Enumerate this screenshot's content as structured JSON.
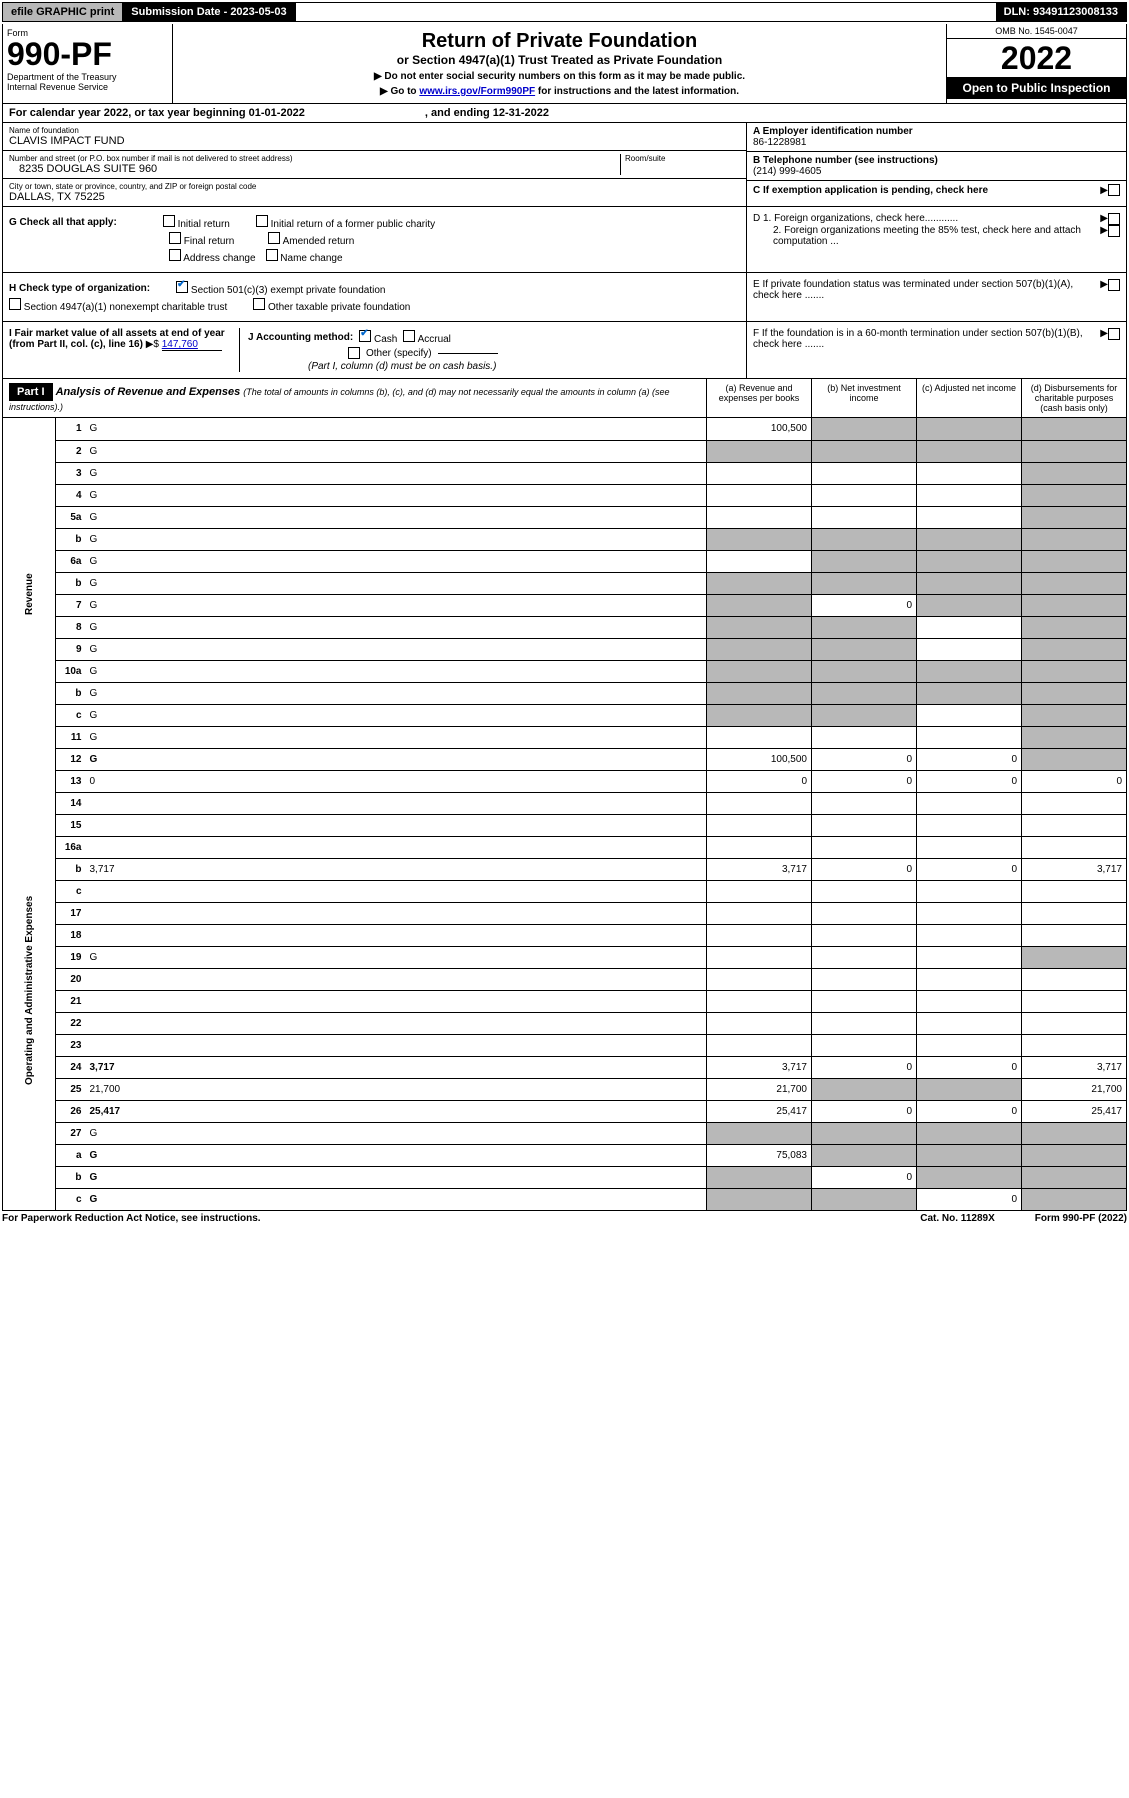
{
  "topbar": {
    "efile": "efile GRAPHIC print",
    "subdate_label": "Submission Date - 2023-05-03",
    "dln": "DLN: 93491123008133"
  },
  "header": {
    "form": "Form",
    "formno": "990-PF",
    "dept": "Department of the Treasury\nInternal Revenue Service",
    "title": "Return of Private Foundation",
    "subtitle": "or Section 4947(a)(1) Trust Treated as Private Foundation",
    "note1": "▶ Do not enter social security numbers on this form as it may be made public.",
    "note2_a": "▶ Go to ",
    "note2_link": "www.irs.gov/Form990PF",
    "note2_b": " for instructions and the latest information.",
    "omb": "OMB No. 1545-0047",
    "year": "2022",
    "inspect": "Open to Public Inspection"
  },
  "calyear": {
    "a": "For calendar year 2022, or tax year beginning 01-01-2022",
    "b": ", and ending 12-31-2022"
  },
  "identity": {
    "name_lbl": "Name of foundation",
    "name": "CLAVIS IMPACT FUND",
    "addr_lbl": "Number and street (or P.O. box number if mail is not delivered to street address)",
    "addr": "8235 DOUGLAS SUITE 960",
    "room_lbl": "Room/suite",
    "city_lbl": "City or town, state or province, country, and ZIP or foreign postal code",
    "city": "DALLAS, TX  75225",
    "ein_lbl": "A Employer identification number",
    "ein": "86-1228981",
    "tel_lbl": "B Telephone number (see instructions)",
    "tel": "(214) 999-4605",
    "c_lbl": "C If exemption application is pending, check here",
    "d1": "D 1. Foreign organizations, check here............",
    "d2": "2. Foreign organizations meeting the 85% test, check here and attach computation ...",
    "e_lbl": "E  If private foundation status was terminated under section 507(b)(1)(A), check here .......",
    "f_lbl": "F  If the foundation is in a 60-month termination under section 507(b)(1)(B), check here .......",
    "g_lbl": "G Check all that apply:",
    "g_opts": [
      "Initial return",
      "Initial return of a former public charity",
      "Final return",
      "Amended return",
      "Address change",
      "Name change"
    ],
    "h_lbl": "H Check type of organization:",
    "h1": "Section 501(c)(3) exempt private foundation",
    "h2": "Section 4947(a)(1) nonexempt charitable trust",
    "h3": "Other taxable private foundation",
    "i_lbl": "I Fair market value of all assets at end of year (from Part II, col. (c), line 16)",
    "i_val": "147,760",
    "j_lbl": "J Accounting method:",
    "j_cash": "Cash",
    "j_accrual": "Accrual",
    "j_other": "Other (specify)",
    "j_note": "(Part I, column (d) must be on cash basis.)"
  },
  "part1": {
    "label": "Part I",
    "title": "Analysis of Revenue and Expenses",
    "note": "(The total of amounts in columns (b), (c), and (d) may not necessarily equal the amounts in column (a) (see instructions).)",
    "col_a": "(a)  Revenue and expenses per books",
    "col_b": "(b)  Net investment income",
    "col_c": "(c)  Adjusted net income",
    "col_d": "(d)  Disbursements for charitable purposes (cash basis only)"
  },
  "side_labels": {
    "revenue": "Revenue",
    "expenses": "Operating and Administrative Expenses"
  },
  "rows": [
    {
      "n": "1",
      "d": "G",
      "a": "100,500",
      "b": "G",
      "c": "G"
    },
    {
      "n": "2",
      "d": "G",
      "a": "G",
      "b": "G",
      "c": "G"
    },
    {
      "n": "3",
      "d": "G",
      "a": "",
      "b": "",
      "c": ""
    },
    {
      "n": "4",
      "d": "G",
      "a": "",
      "b": "",
      "c": ""
    },
    {
      "n": "5a",
      "d": "G",
      "a": "",
      "b": "",
      "c": ""
    },
    {
      "n": "b",
      "d": "G",
      "a": "G",
      "b": "G",
      "c": "G"
    },
    {
      "n": "6a",
      "d": "G",
      "a": "",
      "b": "G",
      "c": "G"
    },
    {
      "n": "b",
      "d": "G",
      "a": "G",
      "b": "G",
      "c": "G"
    },
    {
      "n": "7",
      "d": "G",
      "a": "G",
      "b": "0",
      "c": "G"
    },
    {
      "n": "8",
      "d": "G",
      "a": "G",
      "b": "G",
      "c": ""
    },
    {
      "n": "9",
      "d": "G",
      "a": "G",
      "b": "G",
      "c": ""
    },
    {
      "n": "10a",
      "d": "G",
      "a": "G",
      "b": "G",
      "c": "G"
    },
    {
      "n": "b",
      "d": "G",
      "a": "G",
      "b": "G",
      "c": "G"
    },
    {
      "n": "c",
      "d": "G",
      "a": "G",
      "b": "G",
      "c": ""
    },
    {
      "n": "11",
      "d": "G",
      "a": "",
      "b": "",
      "c": ""
    },
    {
      "n": "12",
      "d": "G",
      "bold": true,
      "a": "100,500",
      "b": "0",
      "c": "0"
    },
    {
      "n": "13",
      "d": "0",
      "a": "0",
      "b": "0",
      "c": "0"
    },
    {
      "n": "14",
      "d": "",
      "a": "",
      "b": "",
      "c": ""
    },
    {
      "n": "15",
      "d": "",
      "a": "",
      "b": "",
      "c": ""
    },
    {
      "n": "16a",
      "d": "",
      "a": "",
      "b": "",
      "c": ""
    },
    {
      "n": "b",
      "d": "3,717",
      "a": "3,717",
      "b": "0",
      "c": "0"
    },
    {
      "n": "c",
      "d": "",
      "a": "",
      "b": "",
      "c": ""
    },
    {
      "n": "17",
      "d": "",
      "a": "",
      "b": "",
      "c": ""
    },
    {
      "n": "18",
      "d": "",
      "a": "",
      "b": "",
      "c": ""
    },
    {
      "n": "19",
      "d": "G",
      "a": "",
      "b": "",
      "c": ""
    },
    {
      "n": "20",
      "d": "",
      "a": "",
      "b": "",
      "c": ""
    },
    {
      "n": "21",
      "d": "",
      "a": "",
      "b": "",
      "c": ""
    },
    {
      "n": "22",
      "d": "",
      "a": "",
      "b": "",
      "c": ""
    },
    {
      "n": "23",
      "d": "",
      "a": "",
      "b": "",
      "c": ""
    },
    {
      "n": "24",
      "d": "3,717",
      "bold": true,
      "a": "3,717",
      "b": "0",
      "c": "0"
    },
    {
      "n": "25",
      "d": "21,700",
      "a": "21,700",
      "b": "G",
      "c": "G"
    },
    {
      "n": "26",
      "d": "25,417",
      "bold": true,
      "a": "25,417",
      "b": "0",
      "c": "0"
    },
    {
      "n": "27",
      "d": "G",
      "a": "G",
      "b": "G",
      "c": "G"
    },
    {
      "n": "a",
      "d": "G",
      "bold": true,
      "a": "75,083",
      "b": "G",
      "c": "G"
    },
    {
      "n": "b",
      "d": "G",
      "bold": true,
      "a": "G",
      "b": "0",
      "c": "G"
    },
    {
      "n": "c",
      "d": "G",
      "bold": true,
      "a": "G",
      "b": "G",
      "c": "0"
    }
  ],
  "footer": {
    "a": "For Paperwork Reduction Act Notice, see instructions.",
    "b": "Cat. No. 11289X",
    "c": "Form 990-PF (2022)"
  }
}
